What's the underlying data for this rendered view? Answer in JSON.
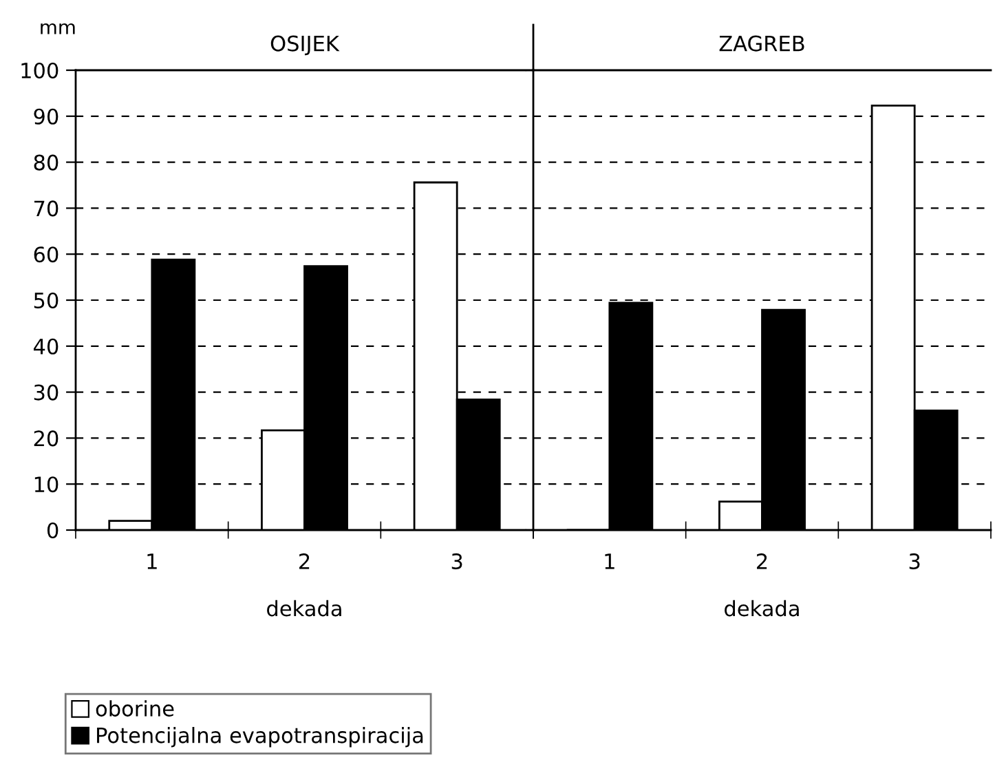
{
  "chart_data": [
    {
      "type": "bar",
      "title": "OSIJEK",
      "xlabel": "dekada",
      "ylabel": "mm",
      "categories": [
        "1",
        "2",
        "3"
      ],
      "series": [
        {
          "name": "oborine",
          "color": "#ffffff",
          "values": [
            2.0,
            21.7,
            75.6
          ]
        },
        {
          "name": "Potencijalna evapotranspiracija",
          "color": "#000000",
          "values": [
            58.8,
            57.4,
            28.4
          ]
        }
      ],
      "ylim": [
        0,
        100
      ],
      "yticks": [
        0,
        10,
        20,
        30,
        40,
        50,
        60,
        70,
        80,
        90,
        100
      ],
      "grid": "y",
      "legend": "bottom left"
    },
    {
      "type": "bar",
      "title": "ZAGREB",
      "xlabel": "dekada",
      "categories": [
        "1",
        "2",
        "3"
      ],
      "series": [
        {
          "color": "#ffffff",
          "values": [
            0,
            6.2,
            92.3
          ]
        },
        {
          "color": "#000000",
          "values": [
            49.4,
            47.9,
            26.0
          ]
        }
      ],
      "ylim": [
        0,
        100
      ],
      "yticks": [
        0,
        10,
        20,
        30,
        40,
        50,
        60,
        70,
        80,
        90,
        100
      ],
      "grid": "y",
      "tick_labels": "x",
      "legend": "bottom left"
    }
  ]
}
